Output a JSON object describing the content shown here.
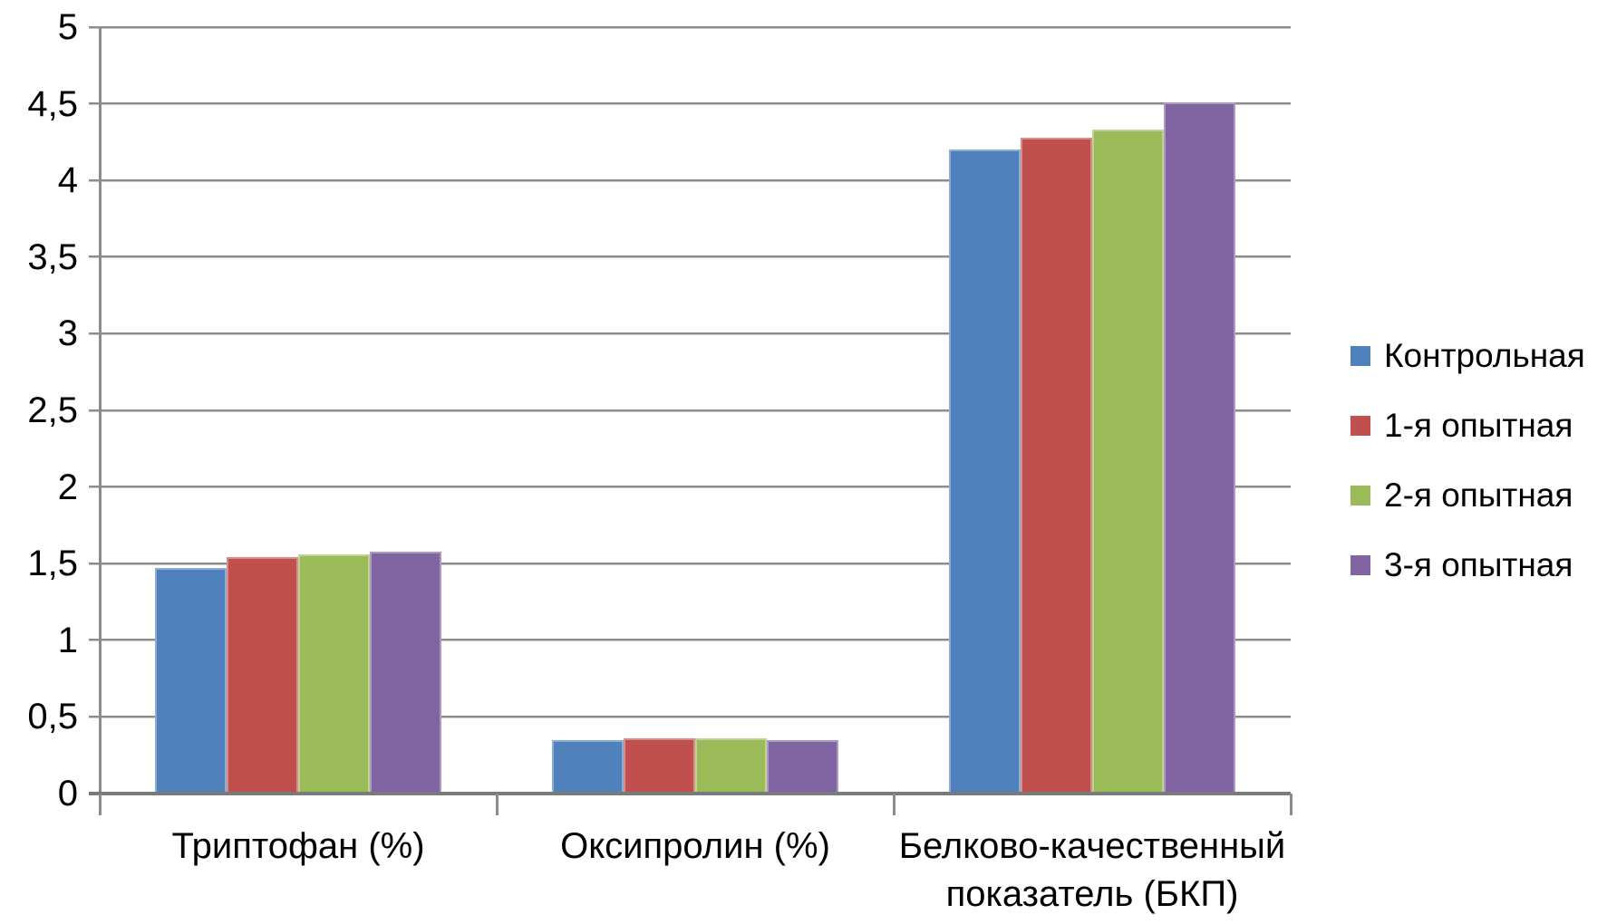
{
  "chart_data": {
    "type": "bar",
    "title": "",
    "xlabel": "",
    "ylabel": "",
    "categories": [
      "Триптофан (%)",
      "Оксипролин (%)",
      "Белково-качественный показатель (БКП)"
    ],
    "category_label_lines": [
      [
        "Триптофан (%)"
      ],
      [
        "Оксипролин (%)"
      ],
      [
        "Белково-качественный",
        "показатель (БКП)"
      ]
    ],
    "series": [
      {
        "name": "Контрольная",
        "color": "#4F81BD",
        "values": [
          1.47,
          0.35,
          4.2
        ]
      },
      {
        "name": "1-я опытная",
        "color": "#C0504D",
        "values": [
          1.54,
          0.36,
          4.28
        ]
      },
      {
        "name": "2-я опытная",
        "color": "#9BBB59",
        "values": [
          1.56,
          0.36,
          4.33
        ]
      },
      {
        "name": "3-я опытная",
        "color": "#8064A2",
        "values": [
          1.58,
          0.35,
          4.51
        ]
      }
    ],
    "ylim": [
      0,
      5
    ],
    "ytick_step": 0.5,
    "yticks": [
      0,
      0.5,
      1,
      1.5,
      2,
      2.5,
      3,
      3.5,
      4,
      4.5,
      5
    ],
    "ytick_labels": [
      "0",
      "0,5",
      "1",
      "1,5",
      "2",
      "2,5",
      "3",
      "3,5",
      "4",
      "4,5",
      "5"
    ],
    "decimal_separator": ",",
    "grid": true,
    "legend_position": "right"
  },
  "colors": {
    "background": "#FFFFFF",
    "text": "#000000",
    "gridline": "#8C8C8C",
    "gridline_shadow": "#C9C9C9",
    "axis_line": "#8C8C8C",
    "baseline": "#7A7A7A"
  }
}
